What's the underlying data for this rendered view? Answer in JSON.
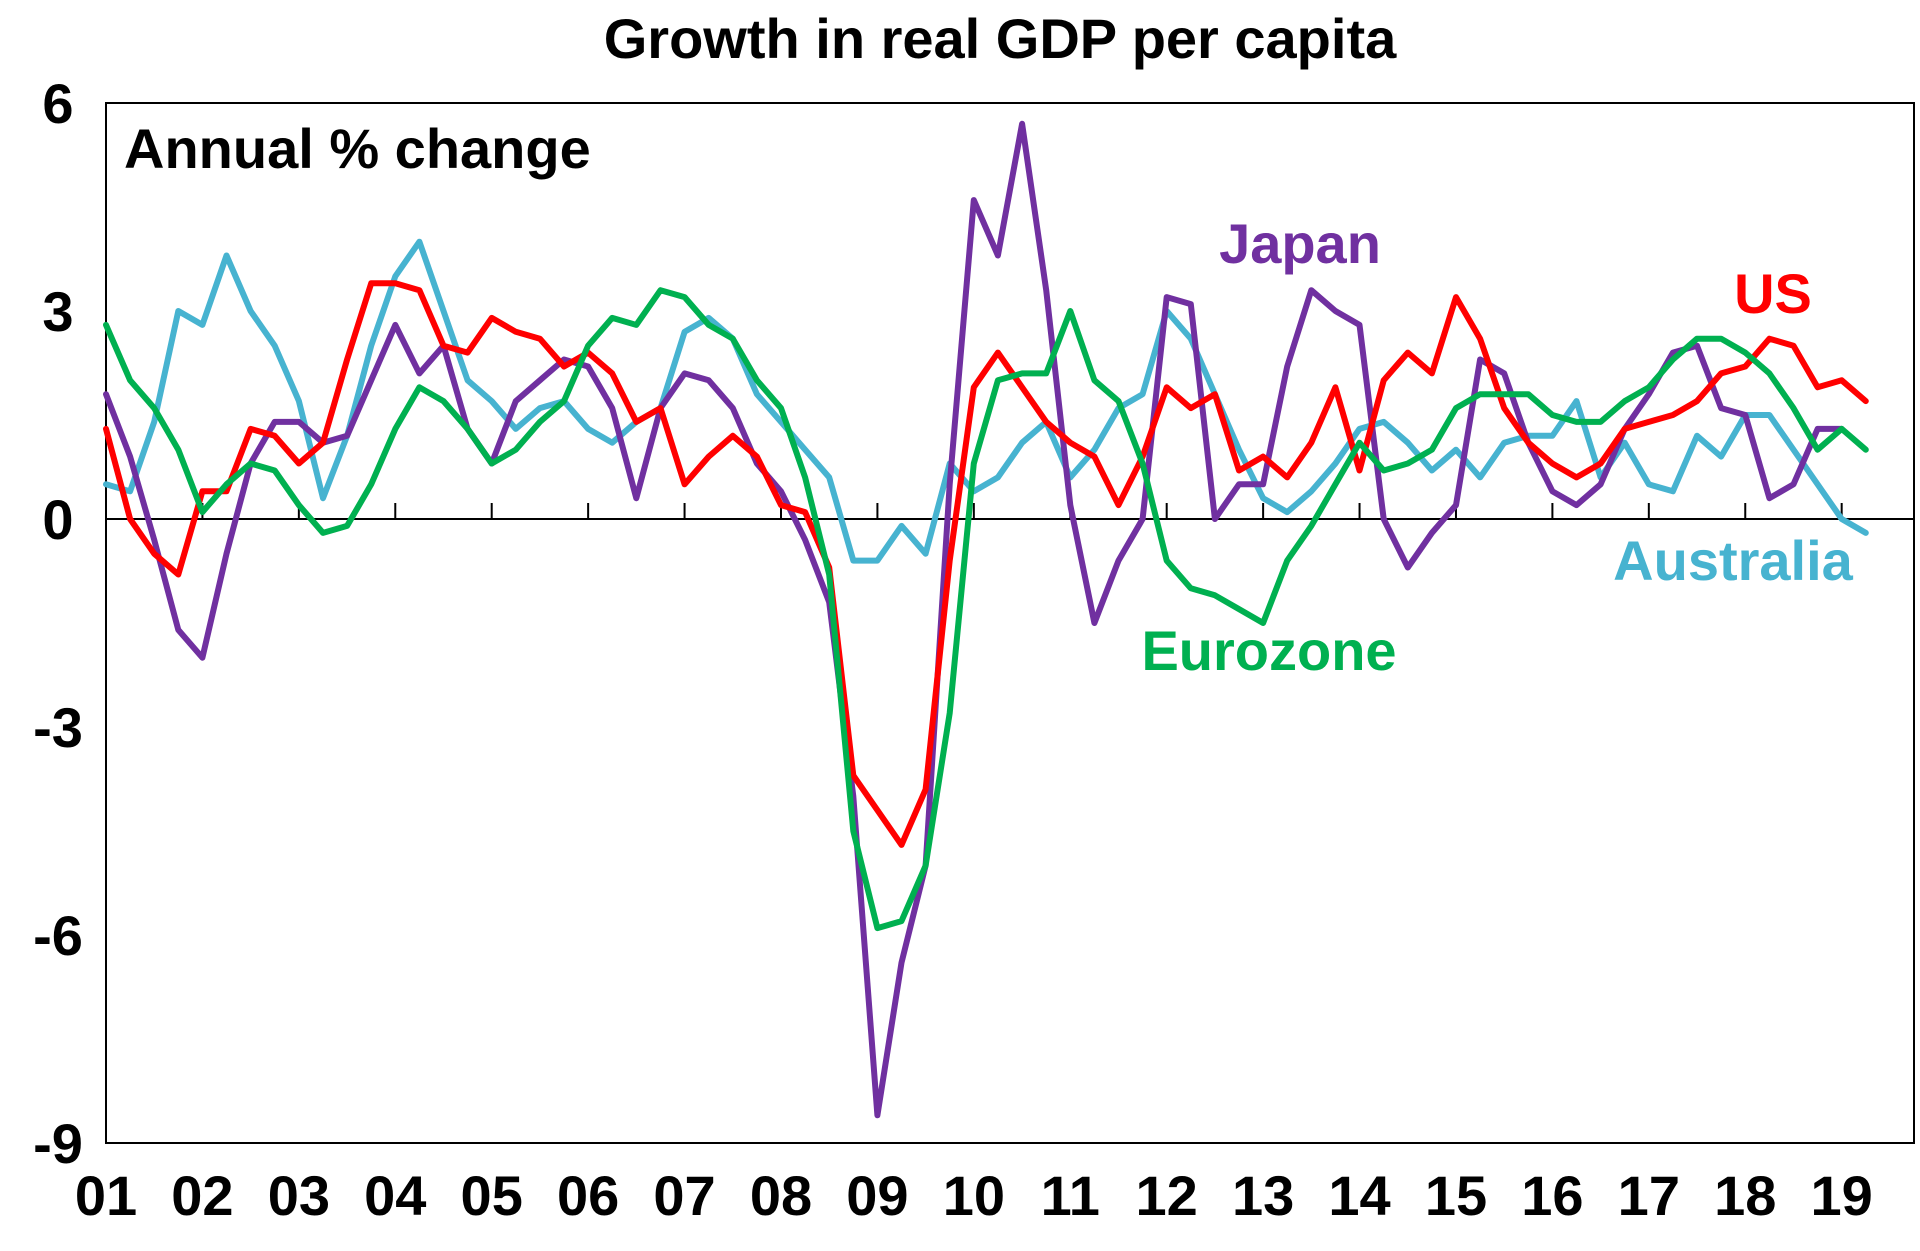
{
  "chart_data": {
    "type": "line",
    "title": "Growth in real GDP per capita",
    "subtitle": "Annual % change",
    "xlabel": "",
    "ylabel": "",
    "ylim": [
      -9,
      6
    ],
    "yticks": [
      "6",
      "3",
      "0",
      "-3",
      "-6",
      "-9"
    ],
    "ytick_values": [
      6,
      3,
      0,
      -3,
      -6,
      -9
    ],
    "xlim": [
      2001,
      2019.75
    ],
    "xticks": [
      "01",
      "02",
      "03",
      "04",
      "05",
      "06",
      "07",
      "08",
      "09",
      "10",
      "11",
      "12",
      "13",
      "14",
      "15",
      "16",
      "17",
      "18",
      "19"
    ],
    "xtick_values": [
      2001,
      2002,
      2003,
      2004,
      2005,
      2006,
      2007,
      2008,
      2009,
      2010,
      2011,
      2012,
      2013,
      2014,
      2015,
      2016,
      2017,
      2018,
      2019
    ],
    "x_start": 2001,
    "x_step": 0.25,
    "series": [
      {
        "name": "Australia",
        "label": "Australia",
        "color": "#47b3d0",
        "values": [
          0.5,
          0.4,
          1.4,
          3.0,
          2.8,
          3.8,
          3.0,
          2.5,
          1.7,
          0.3,
          1.2,
          2.5,
          3.5,
          4.0,
          3.0,
          2.0,
          1.7,
          1.3,
          1.6,
          1.7,
          1.3,
          1.1,
          1.4,
          1.6,
          2.7,
          2.9,
          2.6,
          1.8,
          1.4,
          1.0,
          0.6,
          -0.6,
          -0.6,
          -0.1,
          -0.5,
          0.8,
          0.4,
          0.6,
          1.1,
          1.4,
          0.6,
          1.0,
          1.6,
          1.8,
          3.0,
          2.6,
          1.8,
          1.0,
          0.3,
          0.1,
          0.4,
          0.8,
          1.3,
          1.4,
          1.1,
          0.7,
          1.0,
          0.6,
          1.1,
          1.2,
          1.2,
          1.7,
          0.6,
          1.1,
          0.5,
          0.4,
          1.2,
          0.9,
          1.5,
          1.5,
          1.0,
          0.5,
          0.0,
          -0.2
        ]
      },
      {
        "name": "Japan",
        "label": "Japan",
        "color": "#7030a0",
        "values": [
          1.8,
          0.9,
          -0.3,
          -1.6,
          -2.0,
          -0.5,
          0.8,
          1.4,
          1.4,
          1.1,
          1.2,
          2.0,
          2.8,
          2.1,
          2.5,
          1.3,
          0.8,
          1.7,
          2.0,
          2.3,
          2.2,
          1.6,
          0.3,
          1.6,
          2.1,
          2.0,
          1.6,
          0.8,
          0.4,
          -0.3,
          -1.2,
          -4.0,
          -8.6,
          -6.4,
          -5.0,
          0.5,
          4.6,
          3.8,
          5.7,
          3.3,
          0.2,
          -1.5,
          -0.6,
          0.0,
          3.2,
          3.1,
          0.0,
          0.5,
          0.5,
          2.2,
          3.3,
          3.0,
          2.8,
          0.0,
          -0.7,
          -0.2,
          0.2,
          2.3,
          2.1,
          1.1,
          0.4,
          0.2,
          0.5,
          1.3,
          1.8,
          2.4,
          2.5,
          1.6,
          1.5,
          0.3,
          0.5,
          1.3,
          1.3
        ]
      },
      {
        "name": "US",
        "label": "US",
        "color": "#ff0000",
        "values": [
          1.3,
          0.0,
          -0.5,
          -0.8,
          0.4,
          0.4,
          1.3,
          1.2,
          0.8,
          1.1,
          2.3,
          3.4,
          3.4,
          3.3,
          2.5,
          2.4,
          2.9,
          2.7,
          2.6,
          2.2,
          2.4,
          2.1,
          1.4,
          1.6,
          0.5,
          0.9,
          1.2,
          0.9,
          0.2,
          0.1,
          -0.7,
          -3.7,
          -4.2,
          -4.7,
          -3.9,
          -0.6,
          1.9,
          2.4,
          1.9,
          1.4,
          1.1,
          0.9,
          0.2,
          0.9,
          1.9,
          1.6,
          1.8,
          0.7,
          0.9,
          0.6,
          1.1,
          1.9,
          0.7,
          2.0,
          2.4,
          2.1,
          3.2,
          2.6,
          1.6,
          1.1,
          0.8,
          0.6,
          0.8,
          1.3,
          1.4,
          1.5,
          1.7,
          2.1,
          2.2,
          2.6,
          2.5,
          1.9,
          2.0,
          1.7
        ]
      },
      {
        "name": "Eurozone",
        "label": "Eurozone",
        "color": "#00b050",
        "values": [
          2.8,
          2.0,
          1.6,
          1.0,
          0.1,
          0.5,
          0.8,
          0.7,
          0.2,
          -0.2,
          -0.1,
          0.5,
          1.3,
          1.9,
          1.7,
          1.3,
          0.8,
          1.0,
          1.4,
          1.7,
          2.5,
          2.9,
          2.8,
          3.3,
          3.2,
          2.8,
          2.6,
          2.0,
          1.6,
          0.6,
          -0.8,
          -4.5,
          -5.9,
          -5.8,
          -5.0,
          -2.8,
          0.8,
          2.0,
          2.1,
          2.1,
          3.0,
          2.0,
          1.7,
          0.8,
          -0.6,
          -1.0,
          -1.1,
          -1.3,
          -1.5,
          -0.6,
          -0.1,
          0.5,
          1.1,
          0.7,
          0.8,
          1.0,
          1.6,
          1.8,
          1.8,
          1.8,
          1.5,
          1.4,
          1.4,
          1.7,
          1.9,
          2.3,
          2.6,
          2.6,
          2.4,
          2.1,
          1.6,
          1.0,
          1.3,
          1.0
        ]
      }
    ]
  }
}
